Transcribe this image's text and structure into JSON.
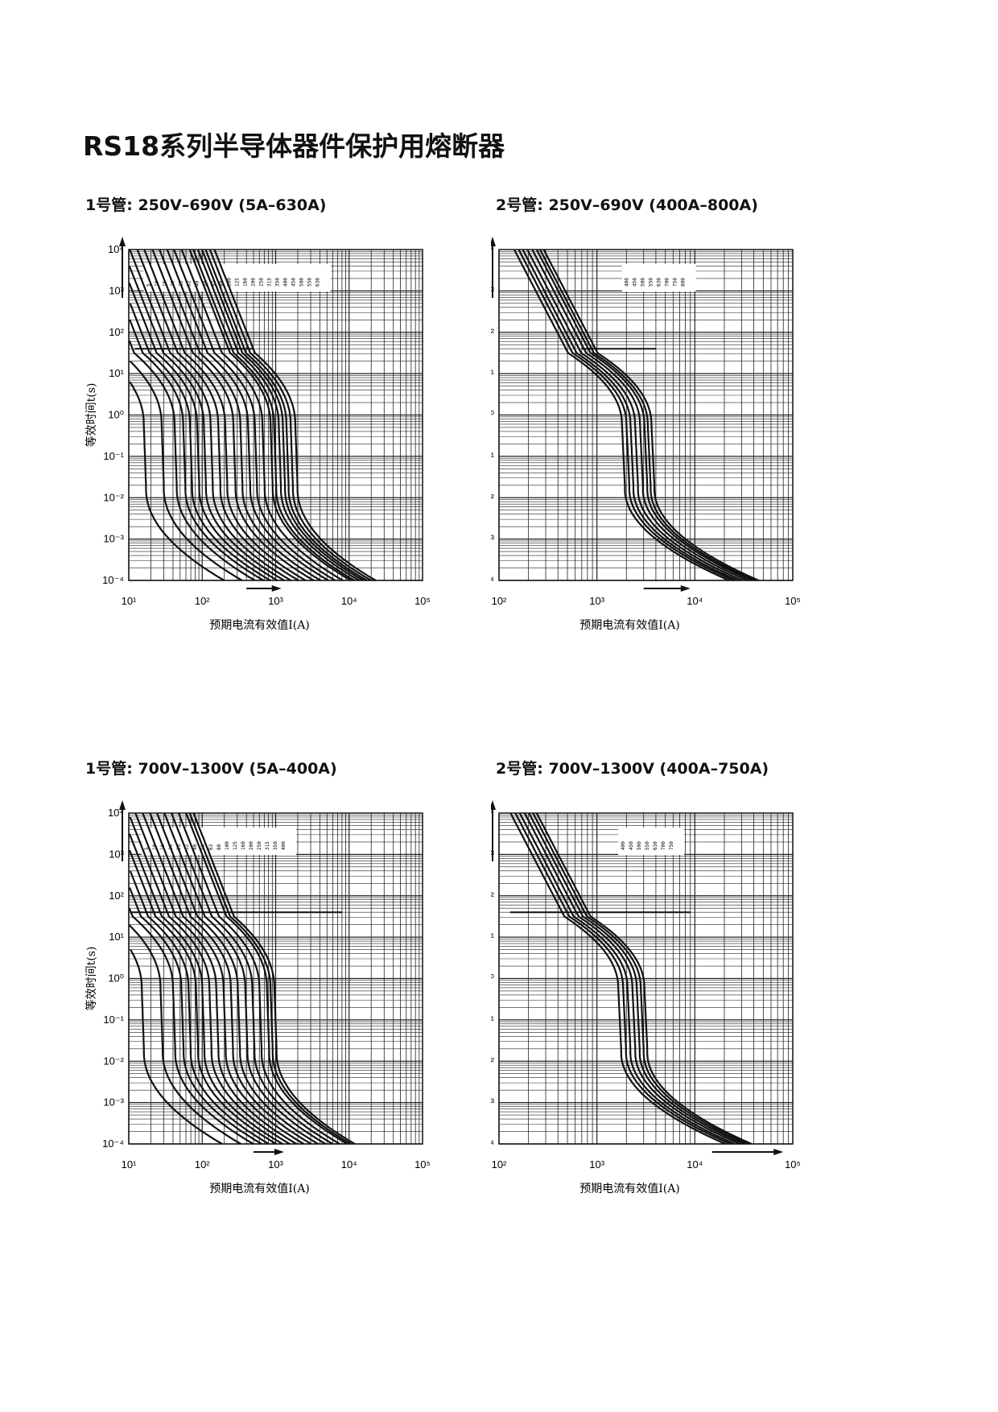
{
  "page": {
    "title": "RS18系列半导体器件保护用熔断器"
  },
  "chart_data": [
    {
      "type": "line",
      "heading_prefix": "1号管:",
      "heading_text": "250V–690V (5A–630A)",
      "xlabel": "预期电流有效值I(A)",
      "ylabel": "等效时间t(s)",
      "x_scale": "log",
      "y_scale": "log",
      "xlim": [
        10,
        100000
      ],
      "ylim": [
        0.0001,
        10000
      ],
      "x_ticks": [
        "10¹",
        "10²",
        "10³",
        "10⁴",
        "10⁵"
      ],
      "y_ticks": [
        "10⁻⁴",
        "10⁻³",
        "10⁻²",
        "10⁻¹",
        "10⁰",
        "10¹",
        "10²",
        "10³",
        "10⁴"
      ],
      "grid": true,
      "ref_line": {
        "y": 40,
        "x_from": 12,
        "x_to": 500
      },
      "arrow_x": {
        "from": 400,
        "to": 1200
      },
      "series": [
        {
          "name": "5",
          "x_at_1s": 16
        },
        {
          "name": "10",
          "x_at_1s": 28
        },
        {
          "name": "16",
          "x_at_1s": 42
        },
        {
          "name": "20",
          "x_at_1s": 55
        },
        {
          "name": "25",
          "x_at_1s": 68
        },
        {
          "name": "32",
          "x_at_1s": 85
        },
        {
          "name": "40",
          "x_at_1s": 105
        },
        {
          "name": "50",
          "x_at_1s": 130
        },
        {
          "name": "63",
          "x_at_1s": 165
        },
        {
          "name": "80",
          "x_at_1s": 205
        },
        {
          "name": "100",
          "x_at_1s": 265
        },
        {
          "name": "125",
          "x_at_1s": 330
        },
        {
          "name": "160",
          "x_at_1s": 420
        },
        {
          "name": "200",
          "x_at_1s": 520
        },
        {
          "name": "250",
          "x_at_1s": 660
        },
        {
          "name": "315",
          "x_at_1s": 850
        },
        {
          "name": "350",
          "x_at_1s": 950
        },
        {
          "name": "400",
          "x_at_1s": 1100
        },
        {
          "name": "450",
          "x_at_1s": 1250
        },
        {
          "name": "500",
          "x_at_1s": 1400
        },
        {
          "name": "550",
          "x_at_1s": 1600
        },
        {
          "name": "630",
          "x_at_1s": 1850
        }
      ]
    },
    {
      "type": "line",
      "heading_prefix": "2号管:",
      "heading_text": "250V–690V (400A–800A)",
      "xlabel": "预期电流有效值I(A)",
      "ylabel": "等效时间t(s)",
      "x_scale": "log",
      "y_scale": "log",
      "xlim": [
        100,
        100000
      ],
      "ylim": [
        0.0001,
        10000
      ],
      "x_ticks": [
        "10²",
        "10³",
        "10⁴",
        "10⁵"
      ],
      "y_ticks": [
        "10⁻⁴",
        "10⁻³",
        "10⁻²",
        "10⁻¹",
        "10⁰",
        "10¹",
        "10²",
        "10³",
        "10⁴"
      ],
      "grid": true,
      "ref_line": {
        "y": 40,
        "x_from": 700,
        "x_to": 4000
      },
      "arrow_x": {
        "from": 3000,
        "to": 9000
      },
      "series": [
        {
          "name": "400",
          "x_at_1s": 1800
        },
        {
          "name": "450",
          "x_at_1s": 2000
        },
        {
          "name": "500",
          "x_at_1s": 2200
        },
        {
          "name": "550",
          "x_at_1s": 2450
        },
        {
          "name": "630",
          "x_at_1s": 2750
        },
        {
          "name": "700",
          "x_at_1s": 3050
        },
        {
          "name": "750",
          "x_at_1s": 3300
        },
        {
          "name": "800",
          "x_at_1s": 3600
        }
      ]
    },
    {
      "type": "line",
      "heading_prefix": "1号管:",
      "heading_text": "700V–1300V (5A–400A)",
      "xlabel": "预期电流有效值I(A)",
      "ylabel": "等效时间t(s)",
      "x_scale": "log",
      "y_scale": "log",
      "xlim": [
        10,
        100000
      ],
      "ylim": [
        0.0001,
        10000
      ],
      "x_ticks": [
        "10¹",
        "10²",
        "10³",
        "10⁴",
        "10⁵"
      ],
      "y_ticks": [
        "10⁻⁴",
        "10⁻³",
        "10⁻²",
        "10⁻¹",
        "10⁰",
        "10¹",
        "10²",
        "10³",
        "10⁴"
      ],
      "grid": true,
      "ref_line": {
        "y": 40,
        "x_from": 11,
        "x_to": 8000
      },
      "arrow_x": {
        "from": 500,
        "to": 1300
      },
      "series": [
        {
          "name": "5",
          "x_at_1s": 15
        },
        {
          "name": "10",
          "x_at_1s": 27
        },
        {
          "name": "16",
          "x_at_1s": 40
        },
        {
          "name": "20",
          "x_at_1s": 52
        },
        {
          "name": "25",
          "x_at_1s": 65
        },
        {
          "name": "32",
          "x_at_1s": 82
        },
        {
          "name": "40",
          "x_at_1s": 100
        },
        {
          "name": "50",
          "x_at_1s": 125
        },
        {
          "name": "63",
          "x_at_1s": 155
        },
        {
          "name": "80",
          "x_at_1s": 195
        },
        {
          "name": "100",
          "x_at_1s": 245
        },
        {
          "name": "125",
          "x_at_1s": 305
        },
        {
          "name": "160",
          "x_at_1s": 385
        },
        {
          "name": "200",
          "x_at_1s": 480
        },
        {
          "name": "250",
          "x_at_1s": 600
        },
        {
          "name": "315",
          "x_at_1s": 760
        },
        {
          "name": "350",
          "x_at_1s": 850
        },
        {
          "name": "400",
          "x_at_1s": 960
        }
      ]
    },
    {
      "type": "line",
      "heading_prefix": "2号管:",
      "heading_text": "700V–1300V (400A–750A)",
      "xlabel": "预期电流有效值I(A)",
      "ylabel": "等效时间t(s)",
      "x_scale": "log",
      "y_scale": "log",
      "xlim": [
        100,
        100000
      ],
      "ylim": [
        0.0001,
        10000
      ],
      "x_ticks": [
        "10²",
        "10³",
        "10⁴",
        "10⁵"
      ],
      "y_ticks": [
        "10⁻⁴",
        "10⁻³",
        "10⁻²",
        "10⁻¹",
        "10⁰",
        "10¹",
        "10²",
        "10³",
        "10⁴"
      ],
      "grid": true,
      "ref_line": {
        "y": 40,
        "x_from": 130,
        "x_to": 9000
      },
      "arrow_x": {
        "from": 15000,
        "to": 80000
      },
      "series": [
        {
          "name": "400",
          "x_at_1s": 1650
        },
        {
          "name": "450",
          "x_at_1s": 1850
        },
        {
          "name": "500",
          "x_at_1s": 2050
        },
        {
          "name": "550",
          "x_at_1s": 2300
        },
        {
          "name": "630",
          "x_at_1s": 2550
        },
        {
          "name": "700",
          "x_at_1s": 2800
        },
        {
          "name": "750",
          "x_at_1s": 3050
        }
      ]
    }
  ]
}
